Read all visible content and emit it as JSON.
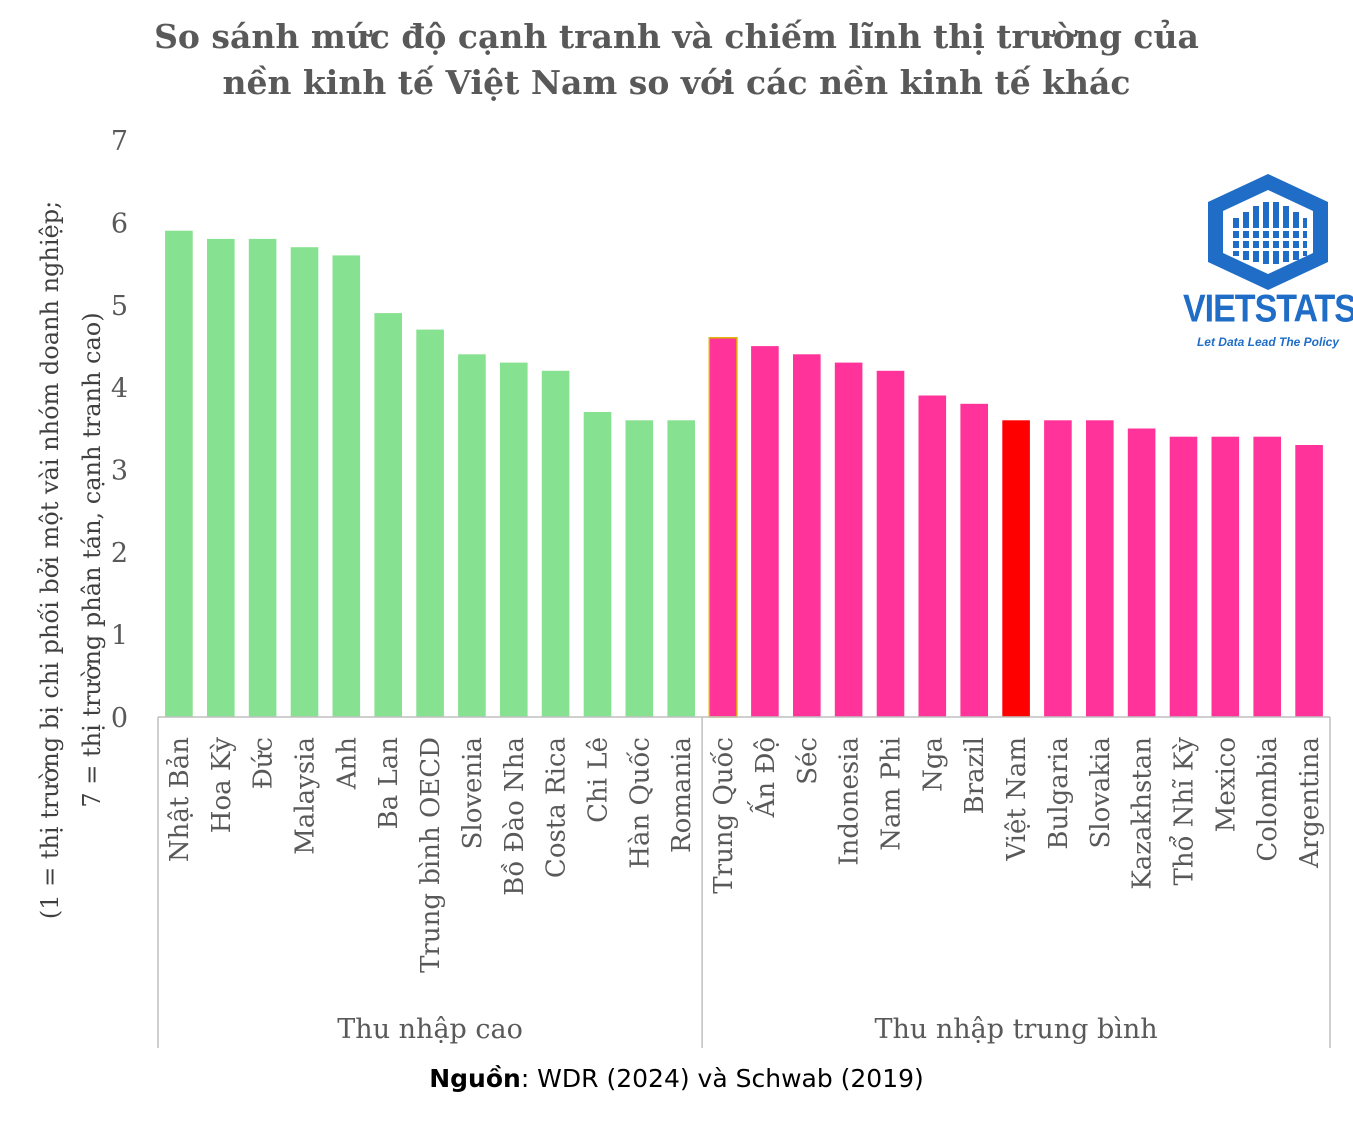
{
  "title_line1": "So sánh mức độ cạnh tranh và chiếm lĩnh thị trường của",
  "title_line2": "nền kinh tế Việt Nam so với các nền kinh tế khác",
  "source_label": "Nguồn",
  "source_text": ": WDR (2024) và Schwab (2019)",
  "logo": {
    "name": "VIETSTATS",
    "tagline": "Let Data Lead The Policy",
    "icon": "building-hexagon-icon",
    "color": "#1f6dc6"
  },
  "chart_data": {
    "type": "bar",
    "ylabel_line1": "(1 = thị trường bị chi phối bởi một vài nhóm doanh nghiệp;",
    "ylabel_line2": "7 = thị trường phân tán, cạnh tranh cao)",
    "ylim": [
      0,
      7
    ],
    "yticks": [
      0,
      1,
      2,
      3,
      4,
      5,
      6,
      7
    ],
    "grid": false,
    "colors": {
      "high_income": "#86e290",
      "middle_income": "#ff3399",
      "highlight": "#ff0000",
      "highlight_border": "#e0b000"
    },
    "groups": [
      {
        "name": "Thu nhập cao",
        "categories": [
          "Nhật Bản",
          "Hoa Kỳ",
          "Đức",
          "Malaysia",
          "Anh",
          "Ba Lan",
          "Trung bình OECD",
          "Slovenia",
          "Bồ Đào Nha",
          "Costa Rica",
          "Chi Lê",
          "Hàn Quốc",
          "Romania"
        ],
        "values": [
          5.9,
          5.8,
          5.8,
          5.7,
          5.6,
          4.9,
          4.7,
          4.4,
          4.3,
          4.2,
          3.7,
          3.6,
          3.6
        ]
      },
      {
        "name": "Thu nhập trung bình",
        "categories": [
          "Trung Quốc",
          "Ấn Độ",
          "Séc",
          "Indonesia",
          "Nam Phi",
          "Nga",
          "Brazil",
          "Việt Nam",
          "Bulgaria",
          "Slovakia",
          "Kazakhstan",
          "Thổ Nhĩ Kỳ",
          "Mexico",
          "Colombia",
          "Argentina"
        ],
        "values": [
          4.6,
          4.5,
          4.4,
          4.3,
          4.2,
          3.9,
          3.8,
          3.6,
          3.6,
          3.6,
          3.5,
          3.4,
          3.4,
          3.4,
          3.3
        ]
      }
    ],
    "highlight_category": "Việt Nam",
    "outlined_category": "Trung Quốc"
  }
}
